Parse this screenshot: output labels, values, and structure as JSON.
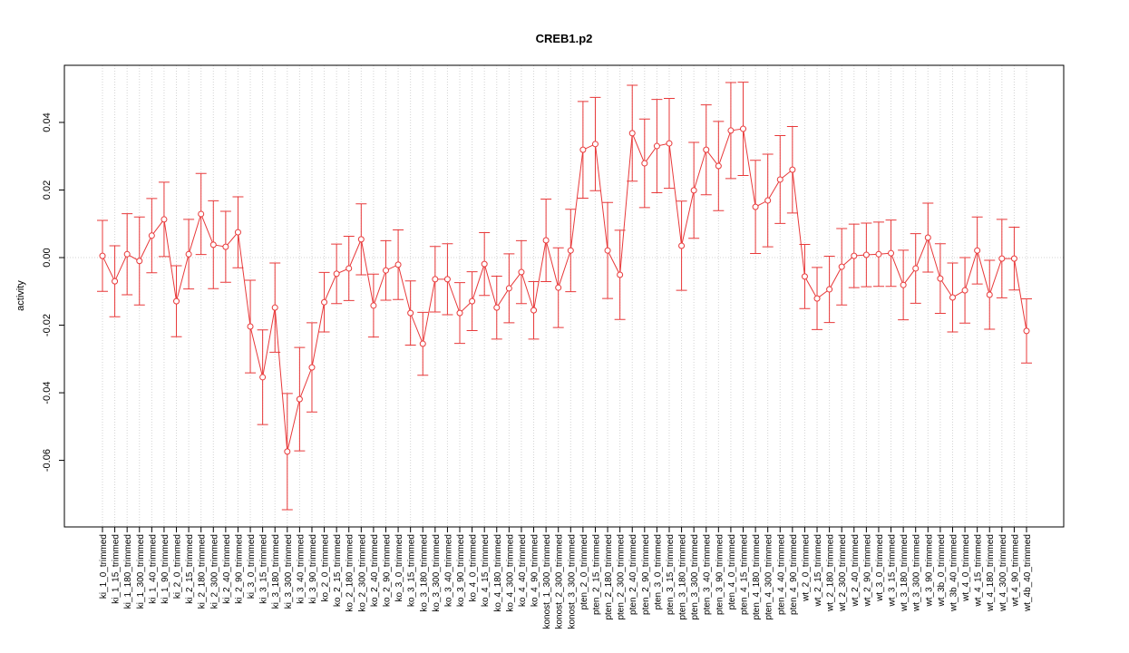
{
  "chart_data": {
    "type": "line_errorbar",
    "title": "CREB1.p2",
    "y_label": "activity",
    "categories": [
      "ki_1_0_trimmed",
      "ki_1_15_trimmed",
      "ki_1_180_trimmed",
      "ki_1_300_trimmed",
      "ki_1_40_trimmed",
      "ki_1_90_trimmed",
      "ki_2_0_trimmed",
      "ki_2_15_trimmed",
      "ki_2_180_trimmed",
      "ki_2_300_trimmed",
      "ki_2_40_trimmed",
      "ki_2_90_trimmed",
      "ki_3_0_trimmed",
      "ki_3_15_trimmed",
      "ki_3_180_trimmed",
      "ki_3_300_trimmed",
      "ki_3_40_trimmed",
      "ki_3_90_trimmed",
      "ko_2_0_trimmed",
      "ko_2_15_trimmed",
      "ko_2_180_trimmed",
      "ko_2_300_trimmed",
      "ko_2_40_trimmed",
      "ko_2_90_trimmed",
      "ko_3_0_trimmed",
      "ko_3_15_trimmed",
      "ko_3_180_trimmed",
      "ko_3_300_trimmed",
      "ko_3_40_trimmed",
      "ko_3_90_trimmed",
      "ko_4_0_trimmed",
      "ko_4_15_trimmed",
      "ko_4_180_trimmed",
      "ko_4_300_trimmed",
      "ko_4_40_trimmed",
      "ko_4_90_trimmed",
      "konost_1_300_trimmed",
      "konost_2_300_trimmed",
      "konost_3_300_trimmed",
      "pten_2_0_trimmed",
      "pten_2_15_trimmed",
      "pten_2_180_trimmed",
      "pten_2_300_trimmed",
      "pten_2_40_trimmed",
      "pten_2_90_trimmed",
      "pten_3_0_trimmed",
      "pten_3_15_trimmed",
      "pten_3_180_trimmed",
      "pten_3_300_trimmed",
      "pten_3_40_trimmed",
      "pten_3_90_trimmed",
      "pten_4_0_trimmed",
      "pten_4_15_trimmed",
      "pten_4_180_trimmed",
      "pten_4_300_trimmed",
      "pten_4_40_trimmed",
      "pten_4_90_trimmed",
      "wt_2_0_trimmed",
      "wt_2_15_trimmed",
      "wt_2_180_trimmed",
      "wt_2_300_trimmed",
      "wt_2_40_trimmed",
      "wt_2_90_trimmed",
      "wt_3_0_trimmed",
      "wt_3_15_trimmed",
      "wt_3_180_trimmed",
      "wt_3_300_trimmed",
      "wt_3_90_trimmed",
      "wt_3b_0_trimmed",
      "wt_3b_40_trimmed",
      "wt_4_0_trimmed",
      "wt_4_15_trimmed",
      "wt_4_180_trimmed",
      "wt_4_300_trimmed",
      "wt_4_90_trimmed",
      "wt_4b_40_trimmed"
    ],
    "values": [
      0.0005,
      -0.007,
      0.001,
      -0.001,
      0.0065,
      0.0113,
      -0.0129,
      0.001,
      0.0129,
      0.0038,
      0.0032,
      0.0075,
      -0.0204,
      -0.0354,
      -0.0148,
      -0.0574,
      -0.0419,
      -0.0325,
      -0.0132,
      -0.0048,
      -0.0032,
      0.0054,
      -0.0142,
      -0.0038,
      -0.0021,
      -0.0164,
      -0.0255,
      -0.0064,
      -0.0064,
      -0.0164,
      -0.0129,
      -0.0019,
      -0.0148,
      -0.0091,
      -0.0043,
      -0.0156,
      0.0051,
      -0.0089,
      0.0021,
      0.0319,
      0.0336,
      0.0021,
      -0.0051,
      0.0368,
      0.0279,
      0.033,
      0.0338,
      0.0035,
      0.0199,
      0.0319,
      0.0271,
      0.0376,
      0.0381,
      0.015,
      0.0169,
      0.0231,
      0.026,
      -0.0056,
      -0.0121,
      -0.0094,
      -0.0027,
      0.0005,
      0.0008,
      0.001,
      0.0013,
      -0.0081,
      -0.0032,
      0.0059,
      -0.0062,
      -0.0118,
      -0.0097,
      0.0021,
      -0.011,
      -0.0003,
      -0.0003,
      -0.0217
    ],
    "errors": [
      0.0105,
      0.0105,
      0.012,
      0.013,
      0.011,
      0.011,
      0.0105,
      0.0103,
      0.012,
      0.013,
      0.0105,
      0.0105,
      0.0137,
      0.014,
      0.0132,
      0.0172,
      0.0153,
      0.0132,
      0.0088,
      0.0088,
      0.0095,
      0.0105,
      0.0093,
      0.0088,
      0.0103,
      0.0095,
      0.0093,
      0.0097,
      0.0105,
      0.009,
      0.0087,
      0.0093,
      0.0093,
      0.0102,
      0.0093,
      0.0085,
      0.0122,
      0.0118,
      0.0122,
      0.0143,
      0.0138,
      0.0142,
      0.0132,
      0.0142,
      0.0131,
      0.0138,
      0.0133,
      0.0132,
      0.0142,
      0.0133,
      0.0132,
      0.0142,
      0.0138,
      0.0138,
      0.0137,
      0.013,
      0.0128,
      0.0095,
      0.0092,
      0.0098,
      0.0113,
      0.0094,
      0.0094,
      0.0095,
      0.0098,
      0.0103,
      0.0103,
      0.0102,
      0.0103,
      0.0102,
      0.0097,
      0.0099,
      0.0102,
      0.0116,
      0.0093,
      0.0095
    ],
    "color": "#e8393a",
    "ylim": [
      -0.0797,
      0.0569
    ],
    "yticks": [
      -0.06,
      -0.04,
      -0.02,
      {
        "value": 0,
        "label": "0.00"
      },
      0.02,
      0.04
    ],
    "grid": true,
    "hline": 0
  }
}
